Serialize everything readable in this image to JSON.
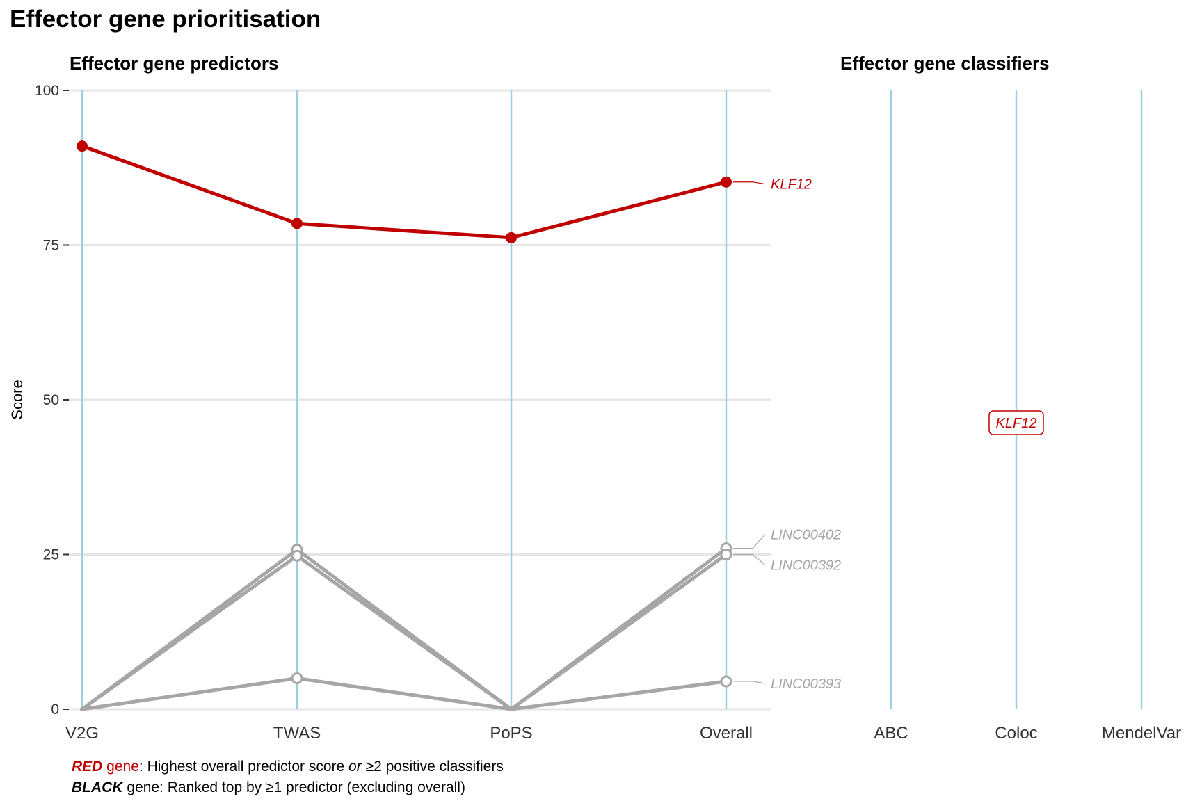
{
  "title": "Effector gene prioritisation",
  "colors": {
    "red": "#c00000",
    "grey": "#a6a6a6",
    "axis_line": "#9ccfe0",
    "grid": "#e6e6e6"
  },
  "chart_data": [
    {
      "type": "line",
      "title": "Effector gene predictors",
      "ylabel": "Score",
      "xlabel": "",
      "ylim": [
        0,
        100
      ],
      "yticks": [
        "0",
        "25",
        "50",
        "75",
        "100"
      ],
      "categories": [
        "V2G",
        "TWAS",
        "PoPS",
        "Overall"
      ],
      "grid": true,
      "series": [
        {
          "name": "KLF12",
          "color": "red",
          "values": [
            91,
            78.5,
            76.2,
            85.2
          ]
        },
        {
          "name": "LINC00402",
          "color": "grey",
          "values": [
            0,
            25.8,
            0,
            26
          ]
        },
        {
          "name": "LINC00392",
          "color": "grey",
          "values": [
            0,
            24.8,
            0,
            25
          ]
        },
        {
          "name": "LINC00393",
          "color": "grey",
          "values": [
            0,
            5,
            0,
            4.5
          ]
        }
      ]
    },
    {
      "type": "table",
      "title": "Effector gene classifiers",
      "categories": [
        "ABC",
        "Coloc",
        "MendelVar"
      ],
      "labels": [
        {
          "category": "Coloc",
          "gene": "KLF12",
          "color": "red"
        }
      ]
    }
  ],
  "caption": {
    "line1": {
      "red_word": "RED",
      "red_gene": " gene",
      "text_before_or": ": Highest overall predictor score ",
      "or_word": "or",
      "text_after_or": " ≥2 positive classifiers"
    },
    "line2": {
      "black_word": "BLACK",
      "text": " gene: Ranked top by ≥1 predictor (excluding overall)"
    }
  }
}
